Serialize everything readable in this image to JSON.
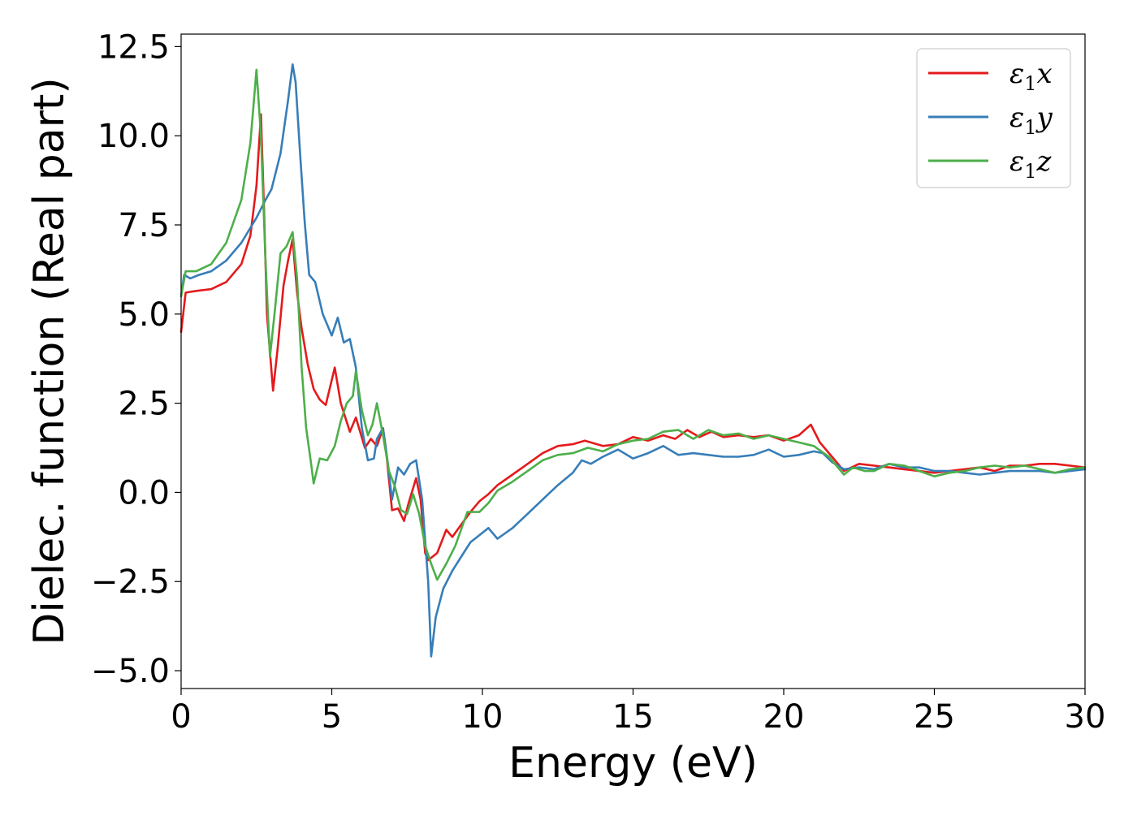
{
  "chart_data": {
    "type": "line",
    "title": "",
    "xlabel": "Energy (eV)",
    "ylabel": "Dielec. function (Real part)",
    "xlim": [
      0,
      30
    ],
    "ylim": [
      -5.5,
      12.85
    ],
    "xticks": [
      0,
      5,
      10,
      15,
      20,
      25,
      30
    ],
    "xtick_labels": [
      "0",
      "5",
      "10",
      "15",
      "20",
      "25",
      "30"
    ],
    "yticks": [
      -5,
      -2.5,
      0,
      2.5,
      5,
      7.5,
      10,
      12.5
    ],
    "ytick_labels": [
      "−5.0",
      "−2.5",
      "0.0",
      "2.5",
      "5.0",
      "7.5",
      "10.0",
      "12.5"
    ],
    "grid": false,
    "legend_position": "top-right",
    "series": [
      {
        "name": "ε1x",
        "label_base": "ε",
        "label_sub": "1",
        "label_var": "x",
        "color": "#e41a1c",
        "points": [
          [
            0,
            4.5
          ],
          [
            0.15,
            5.6
          ],
          [
            0.5,
            5.65
          ],
          [
            1,
            5.7
          ],
          [
            1.5,
            5.9
          ],
          [
            2,
            6.4
          ],
          [
            2.3,
            7.2
          ],
          [
            2.5,
            8.6
          ],
          [
            2.65,
            10.6
          ],
          [
            2.75,
            8
          ],
          [
            2.85,
            5
          ],
          [
            3.05,
            2.85
          ],
          [
            3.2,
            4
          ],
          [
            3.4,
            5.8
          ],
          [
            3.55,
            6.5
          ],
          [
            3.7,
            7.1
          ],
          [
            3.85,
            5.6
          ],
          [
            4,
            4.6
          ],
          [
            4.2,
            3.6
          ],
          [
            4.4,
            2.9
          ],
          [
            4.6,
            2.6
          ],
          [
            4.8,
            2.45
          ],
          [
            5.1,
            3.5
          ],
          [
            5.3,
            2.5
          ],
          [
            5.6,
            1.7
          ],
          [
            5.8,
            2.1
          ],
          [
            6.1,
            1.25
          ],
          [
            6.3,
            1.5
          ],
          [
            6.5,
            1.3
          ],
          [
            6.7,
            1.8
          ],
          [
            6.8,
            1.2
          ],
          [
            7,
            -0.5
          ],
          [
            7.2,
            -0.45
          ],
          [
            7.4,
            -0.8
          ],
          [
            7.55,
            -0.3
          ],
          [
            7.8,
            0.4
          ],
          [
            7.95,
            -0.2
          ],
          [
            8.1,
            -1.7
          ],
          [
            8.2,
            -1.9
          ],
          [
            8.5,
            -1.7
          ],
          [
            8.8,
            -1.05
          ],
          [
            9,
            -1.25
          ],
          [
            9.3,
            -0.9
          ],
          [
            9.6,
            -0.55
          ],
          [
            9.9,
            -0.25
          ],
          [
            10.2,
            -0.05
          ],
          [
            10.5,
            0.2
          ],
          [
            11,
            0.5
          ],
          [
            11.5,
            0.8
          ],
          [
            12,
            1.1
          ],
          [
            12.5,
            1.3
          ],
          [
            13,
            1.35
          ],
          [
            13.4,
            1.45
          ],
          [
            14,
            1.3
          ],
          [
            14.5,
            1.35
          ],
          [
            15,
            1.55
          ],
          [
            15.5,
            1.45
          ],
          [
            16,
            1.6
          ],
          [
            16.4,
            1.5
          ],
          [
            16.8,
            1.75
          ],
          [
            17.2,
            1.55
          ],
          [
            17.6,
            1.7
          ],
          [
            18,
            1.55
          ],
          [
            18.5,
            1.6
          ],
          [
            19,
            1.55
          ],
          [
            19.5,
            1.6
          ],
          [
            20,
            1.45
          ],
          [
            20.5,
            1.6
          ],
          [
            20.9,
            1.9
          ],
          [
            21.2,
            1.4
          ],
          [
            21.6,
            1.0
          ],
          [
            22,
            0.6
          ],
          [
            22.5,
            0.8
          ],
          [
            23,
            0.75
          ],
          [
            23.5,
            0.7
          ],
          [
            24,
            0.65
          ],
          [
            24.5,
            0.6
          ],
          [
            25,
            0.55
          ],
          [
            25.5,
            0.6
          ],
          [
            26,
            0.65
          ],
          [
            26.5,
            0.7
          ],
          [
            27,
            0.6
          ],
          [
            27.5,
            0.75
          ],
          [
            28,
            0.75
          ],
          [
            28.5,
            0.8
          ],
          [
            29,
            0.8
          ],
          [
            29.5,
            0.75
          ],
          [
            30,
            0.7
          ]
        ]
      },
      {
        "name": "ε1y",
        "label_base": "ε",
        "label_sub": "1",
        "label_var": "y",
        "color": "#377eb8",
        "points": [
          [
            0,
            5.5
          ],
          [
            0.1,
            6.1
          ],
          [
            0.3,
            6.0
          ],
          [
            0.6,
            6.1
          ],
          [
            1,
            6.2
          ],
          [
            1.5,
            6.5
          ],
          [
            2,
            7.0
          ],
          [
            2.5,
            7.7
          ],
          [
            2.8,
            8.2
          ],
          [
            3.0,
            8.5
          ],
          [
            3.3,
            9.5
          ],
          [
            3.55,
            11.0
          ],
          [
            3.7,
            12.0
          ],
          [
            3.8,
            11.5
          ],
          [
            3.95,
            9.5
          ],
          [
            4.1,
            7.6
          ],
          [
            4.25,
            6.1
          ],
          [
            4.45,
            5.9
          ],
          [
            4.7,
            5.0
          ],
          [
            5.0,
            4.4
          ],
          [
            5.2,
            4.9
          ],
          [
            5.4,
            4.2
          ],
          [
            5.6,
            4.3
          ],
          [
            5.8,
            3.5
          ],
          [
            6.0,
            1.8
          ],
          [
            6.2,
            0.9
          ],
          [
            6.4,
            0.95
          ],
          [
            6.5,
            1.5
          ],
          [
            6.7,
            1.8
          ],
          [
            6.85,
            0.9
          ],
          [
            7.0,
            -0.2
          ],
          [
            7.2,
            0.7
          ],
          [
            7.4,
            0.5
          ],
          [
            7.6,
            0.8
          ],
          [
            7.8,
            0.9
          ],
          [
            8.0,
            -0.2
          ],
          [
            8.2,
            -2.5
          ],
          [
            8.3,
            -4.6
          ],
          [
            8.45,
            -3.5
          ],
          [
            8.7,
            -2.7
          ],
          [
            9.0,
            -2.2
          ],
          [
            9.3,
            -1.8
          ],
          [
            9.6,
            -1.4
          ],
          [
            9.9,
            -1.2
          ],
          [
            10.2,
            -1.0
          ],
          [
            10.5,
            -1.3
          ],
          [
            11,
            -1.0
          ],
          [
            11.5,
            -0.6
          ],
          [
            12,
            -0.2
          ],
          [
            12.5,
            0.2
          ],
          [
            13,
            0.55
          ],
          [
            13.3,
            0.9
          ],
          [
            13.6,
            0.8
          ],
          [
            14,
            1.0
          ],
          [
            14.5,
            1.2
          ],
          [
            15,
            0.95
          ],
          [
            15.5,
            1.1
          ],
          [
            16,
            1.3
          ],
          [
            16.5,
            1.05
          ],
          [
            17,
            1.1
          ],
          [
            17.5,
            1.05
          ],
          [
            18,
            1.0
          ],
          [
            18.5,
            1.0
          ],
          [
            19,
            1.05
          ],
          [
            19.5,
            1.2
          ],
          [
            20,
            1.0
          ],
          [
            20.5,
            1.05
          ],
          [
            21,
            1.15
          ],
          [
            21.3,
            1.1
          ],
          [
            21.6,
            0.85
          ],
          [
            22,
            0.65
          ],
          [
            22.5,
            0.7
          ],
          [
            23,
            0.65
          ],
          [
            23.5,
            0.8
          ],
          [
            24,
            0.7
          ],
          [
            24.5,
            0.7
          ],
          [
            25,
            0.6
          ],
          [
            25.5,
            0.6
          ],
          [
            26,
            0.55
          ],
          [
            26.5,
            0.5
          ],
          [
            27,
            0.55
          ],
          [
            27.5,
            0.6
          ],
          [
            28,
            0.6
          ],
          [
            28.5,
            0.6
          ],
          [
            29,
            0.55
          ],
          [
            29.5,
            0.6
          ],
          [
            30,
            0.65
          ]
        ]
      },
      {
        "name": "ε1z",
        "label_base": "ε",
        "label_sub": "1",
        "label_var": "z",
        "color": "#4daf4a",
        "points": [
          [
            0,
            5.5
          ],
          [
            0.15,
            6.2
          ],
          [
            0.5,
            6.2
          ],
          [
            1,
            6.4
          ],
          [
            1.5,
            7.0
          ],
          [
            2,
            8.2
          ],
          [
            2.3,
            9.8
          ],
          [
            2.5,
            11.85
          ],
          [
            2.65,
            10.0
          ],
          [
            2.8,
            6.5
          ],
          [
            2.95,
            3.8
          ],
          [
            3.1,
            5.0
          ],
          [
            3.3,
            6.7
          ],
          [
            3.5,
            6.9
          ],
          [
            3.7,
            7.3
          ],
          [
            3.85,
            6.0
          ],
          [
            4.0,
            3.5
          ],
          [
            4.15,
            1.8
          ],
          [
            4.3,
            0.9
          ],
          [
            4.4,
            0.25
          ],
          [
            4.6,
            0.95
          ],
          [
            4.85,
            0.9
          ],
          [
            5.1,
            1.3
          ],
          [
            5.3,
            2.0
          ],
          [
            5.5,
            2.5
          ],
          [
            5.7,
            2.7
          ],
          [
            5.8,
            3.4
          ],
          [
            6.0,
            2.3
          ],
          [
            6.2,
            1.6
          ],
          [
            6.35,
            1.9
          ],
          [
            6.5,
            2.5
          ],
          [
            6.7,
            1.6
          ],
          [
            6.9,
            0.6
          ],
          [
            7.1,
            0.15
          ],
          [
            7.3,
            -0.5
          ],
          [
            7.5,
            -0.6
          ],
          [
            7.7,
            -0.05
          ],
          [
            7.9,
            -0.6
          ],
          [
            8.1,
            -1.5
          ],
          [
            8.3,
            -2.0
          ],
          [
            8.5,
            -2.45
          ],
          [
            8.8,
            -2.0
          ],
          [
            9.1,
            -1.5
          ],
          [
            9.5,
            -0.55
          ],
          [
            9.9,
            -0.55
          ],
          [
            10.2,
            -0.3
          ],
          [
            10.5,
            0.05
          ],
          [
            11,
            0.3
          ],
          [
            11.5,
            0.6
          ],
          [
            12,
            0.9
          ],
          [
            12.5,
            1.05
          ],
          [
            13,
            1.1
          ],
          [
            13.5,
            1.25
          ],
          [
            14,
            1.15
          ],
          [
            14.5,
            1.35
          ],
          [
            15,
            1.45
          ],
          [
            15.5,
            1.5
          ],
          [
            16,
            1.7
          ],
          [
            16.5,
            1.75
          ],
          [
            17,
            1.5
          ],
          [
            17.5,
            1.75
          ],
          [
            18,
            1.6
          ],
          [
            18.5,
            1.65
          ],
          [
            19,
            1.5
          ],
          [
            19.5,
            1.6
          ],
          [
            20,
            1.5
          ],
          [
            20.5,
            1.4
          ],
          [
            21,
            1.3
          ],
          [
            21.5,
            1.0
          ],
          [
            22,
            0.5
          ],
          [
            22.3,
            0.7
          ],
          [
            22.7,
            0.6
          ],
          [
            23,
            0.6
          ],
          [
            23.5,
            0.8
          ],
          [
            24,
            0.75
          ],
          [
            24.5,
            0.6
          ],
          [
            25,
            0.45
          ],
          [
            25.5,
            0.55
          ],
          [
            26,
            0.6
          ],
          [
            26.5,
            0.7
          ],
          [
            27,
            0.75
          ],
          [
            27.5,
            0.7
          ],
          [
            28,
            0.75
          ],
          [
            28.5,
            0.65
          ],
          [
            29,
            0.55
          ],
          [
            29.5,
            0.65
          ],
          [
            30,
            0.7
          ]
        ]
      }
    ]
  }
}
